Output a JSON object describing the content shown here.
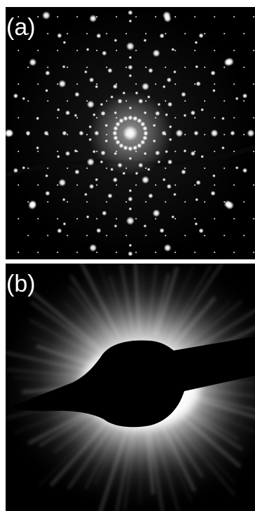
{
  "figure": {
    "panels": [
      {
        "id": "a",
        "label": "(a)",
        "content": "electron-diffraction-pattern"
      },
      {
        "id": "b",
        "label": "(b)",
        "content": "diffuse-halo-with-beam-stop"
      }
    ]
  },
  "colors": {
    "background": "#000000",
    "spot": "#ffffff",
    "separator": "#ffffff"
  }
}
